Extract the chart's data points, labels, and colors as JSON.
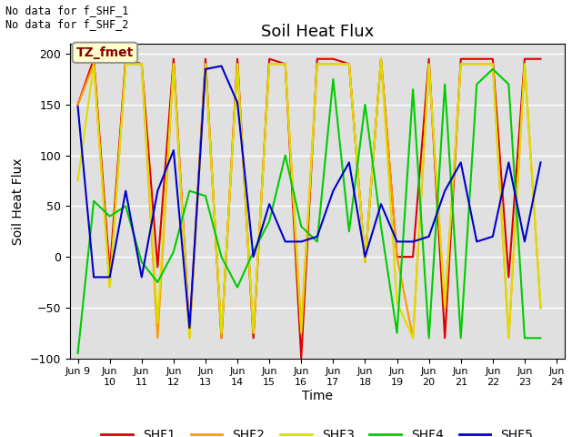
{
  "title": "Soil Heat Flux",
  "ylabel": "Soil Heat Flux",
  "xlabel": "Time",
  "ylim": [
    -100,
    210
  ],
  "yticks": [
    -100,
    -50,
    0,
    50,
    100,
    150,
    200
  ],
  "annotation_text": "No data for f_SHF_1\nNo data for f_SHF_2",
  "legend_box_text": "TZ_fmet",
  "legend_entries": [
    "SHF1",
    "SHF2",
    "SHF3",
    "SHF4",
    "SHF5"
  ],
  "colors": {
    "SHF1": "#dd0000",
    "SHF2": "#ff9900",
    "SHF3": "#dddd00",
    "SHF4": "#00cc00",
    "SHF5": "#0000cc"
  },
  "xtick_positions": [
    0,
    2,
    4,
    6,
    8,
    10,
    12,
    14,
    16,
    18,
    20,
    22,
    24,
    26,
    28,
    30
  ],
  "xtick_labels": [
    "Jun 9",
    "Jun\n10",
    "Jun\n11",
    "Jun\n12",
    "Jun\n13",
    "Jun\n14",
    "Jun\n15",
    "Jun\n16",
    "Jun\n17",
    "Jun\n18",
    "Jun\n19",
    "Jun\n20",
    "Jun\n21",
    "Jun\n22",
    "Jun\n23",
    "Jun\n24"
  ],
  "SHF1": [
    150,
    195,
    -15,
    195,
    190,
    -10,
    195,
    -75,
    195,
    -80,
    195,
    -80,
    195,
    190,
    -100,
    195,
    195,
    190,
    -5,
    195,
    0,
    0,
    195,
    -80,
    195,
    195,
    195,
    -20,
    195,
    195
  ],
  "SHF2": [
    150,
    190,
    -30,
    190,
    190,
    -80,
    190,
    -80,
    190,
    -80,
    190,
    -75,
    190,
    190,
    -70,
    190,
    190,
    190,
    -5,
    195,
    0,
    -80,
    190,
    -50,
    190,
    190,
    190,
    -80,
    190,
    -50
  ],
  "SHF3": [
    75,
    190,
    -30,
    190,
    190,
    -65,
    190,
    -80,
    190,
    -75,
    190,
    -75,
    190,
    190,
    -75,
    190,
    190,
    190,
    -5,
    195,
    -45,
    -80,
    190,
    -50,
    190,
    190,
    190,
    -80,
    190,
    -50
  ],
  "SHF4": [
    -95,
    55,
    40,
    50,
    -5,
    -25,
    5,
    65,
    60,
    0,
    -30,
    5,
    35,
    100,
    30,
    15,
    175,
    25,
    150,
    30,
    -75,
    165,
    -80,
    170,
    -80,
    170,
    185,
    170,
    -80,
    -80
  ],
  "SHF5": [
    148,
    -20,
    -20,
    65,
    -20,
    65,
    105,
    -70,
    185,
    188,
    152,
    0,
    52,
    15,
    15,
    20,
    65,
    93,
    0,
    52,
    15,
    15,
    20,
    65,
    93,
    15,
    20,
    93,
    15,
    93
  ],
  "background_color": "#e0e0e0",
  "grid_color": "#ffffff"
}
